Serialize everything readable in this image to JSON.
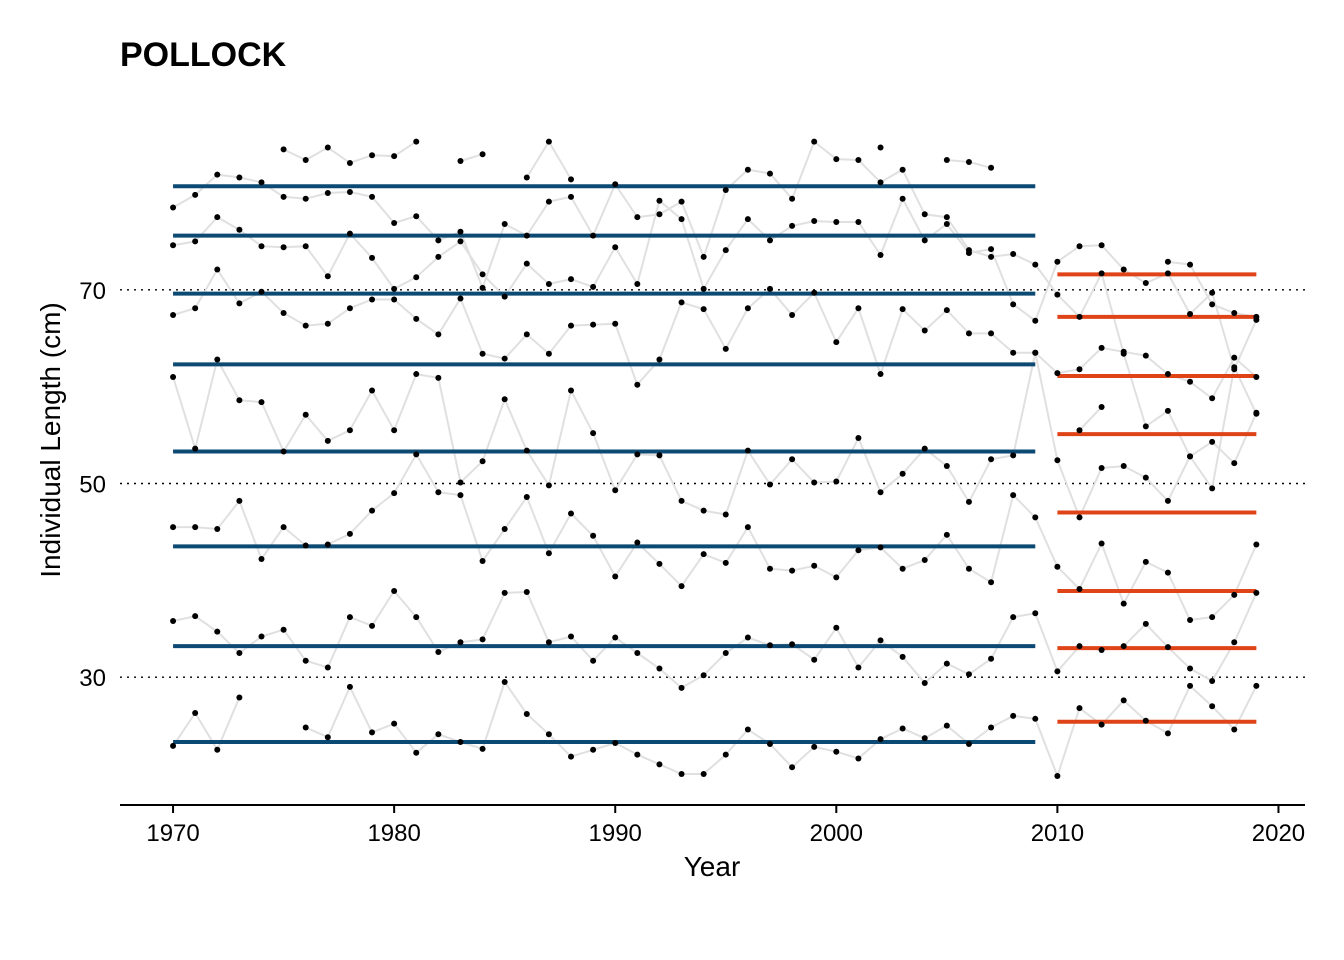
{
  "chart_data": {
    "type": "line",
    "title": "POLLOCK",
    "xlabel": "Year",
    "ylabel": "Individual Length (cm)",
    "xlim": [
      1967.6,
      2021.2
    ],
    "ylim": [
      16.8,
      89.6
    ],
    "x_ticks": [
      1970,
      1980,
      1990,
      2000,
      2010,
      2020
    ],
    "y_ticks": [
      30,
      50,
      70
    ],
    "reference_lines_y": [
      30,
      50,
      70
    ],
    "colors": {
      "series_line": "#e0e0e0",
      "points": "#000000",
      "mean_early": "#0d4a73",
      "mean_late": "#df4419",
      "reference": "#000000"
    },
    "periods": [
      {
        "start": 1970,
        "end": 2009,
        "color": "#0d4a73"
      },
      {
        "start": 2010,
        "end": 2019,
        "color": "#df4419"
      }
    ],
    "years": [
      1970,
      1971,
      1972,
      1973,
      1974,
      1975,
      1976,
      1977,
      1978,
      1979,
      1980,
      1981,
      1982,
      1983,
      1984,
      1985,
      1986,
      1987,
      1988,
      1989,
      1990,
      1991,
      1992,
      1993,
      1994,
      1995,
      1996,
      1997,
      1998,
      1999,
      2000,
      2001,
      2002,
      2003,
      2004,
      2005,
      2006,
      2007,
      2008,
      2009,
      2010,
      2011,
      2012,
      2013,
      2014,
      2015,
      2016,
      2017,
      2018,
      2019
    ],
    "series": [
      {
        "values": [
          22.9,
          26.3,
          22.5,
          27.9,
          null,
          null,
          24.8,
          23.8,
          29.0,
          24.3,
          25.2,
          22.2,
          24.1,
          23.3,
          22.6,
          29.5,
          26.2,
          24.1,
          21.8,
          22.5,
          23.2,
          22.0,
          21.0,
          20.0,
          20.0,
          22.0,
          24.6,
          23.1,
          20.7,
          22.8,
          22.3,
          21.6,
          23.6,
          24.7,
          23.7,
          25.0,
          23.1,
          24.8,
          26.0,
          25.7,
          19.8,
          26.8,
          25.1,
          27.6,
          25.5,
          24.2,
          29.1,
          27.0,
          24.6,
          29.1
        ]
      },
      {
        "values": [
          35.8,
          36.3,
          34.7,
          32.5,
          34.2,
          34.9,
          31.7,
          31.0,
          36.2,
          35.3,
          38.9,
          36.2,
          32.6,
          33.6,
          33.9,
          38.7,
          38.8,
          33.6,
          34.2,
          31.7,
          34.1,
          32.5,
          30.9,
          28.9,
          30.2,
          32.5,
          34.1,
          33.3,
          33.4,
          31.8,
          35.1,
          31.0,
          33.8,
          32.1,
          29.4,
          31.4,
          30.3,
          31.9,
          36.2,
          36.6,
          30.6,
          33.2,
          32.8,
          33.2,
          35.5,
          33.1,
          30.9,
          29.6,
          33.6,
          38.7
        ]
      },
      {
        "values": [
          45.5,
          45.5,
          45.3,
          48.2,
          42.2,
          45.5,
          43.6,
          43.7,
          44.8,
          47.2,
          49.0,
          53.0,
          49.1,
          48.8,
          42.0,
          45.3,
          48.6,
          42.8,
          46.9,
          44.6,
          40.4,
          43.9,
          41.7,
          39.4,
          42.7,
          41.8,
          45.5,
          41.2,
          41.0,
          41.5,
          40.3,
          43.1,
          43.4,
          41.2,
          42.1,
          44.7,
          41.2,
          39.8,
          48.8,
          46.5,
          41.4,
          39.1,
          43.8,
          37.6,
          41.9,
          40.8,
          35.9,
          36.2,
          38.5,
          43.7
        ]
      },
      {
        "values": [
          61.0,
          53.6,
          62.8,
          58.6,
          58.4,
          53.3,
          57.1,
          54.4,
          55.5,
          59.6,
          55.5,
          61.3,
          60.9,
          50.1,
          52.3,
          58.7,
          53.4,
          49.8,
          59.6,
          55.2,
          49.3,
          53.0,
          52.9,
          48.2,
          47.2,
          46.8,
          53.4,
          49.9,
          52.5,
          50.1,
          50.2,
          54.7,
          49.1,
          51.0,
          53.6,
          51.8,
          48.1,
          52.5,
          52.9,
          63.5,
          52.4,
          46.5,
          51.6,
          51.8,
          50.6,
          48.2,
          52.8,
          54.3,
          52.1,
          57.3
        ]
      },
      {
        "values": [
          67.4,
          68.1,
          72.1,
          68.6,
          69.8,
          67.6,
          66.3,
          66.5,
          68.1,
          69.0,
          69.0,
          67.0,
          65.4,
          69.1,
          63.4,
          62.9,
          65.4,
          63.4,
          66.3,
          66.4,
          66.5,
          60.2,
          62.8,
          68.7,
          68.0,
          63.9,
          68.1,
          70.1,
          67.4,
          69.7,
          64.6,
          68.1,
          61.3,
          68.0,
          65.8,
          67.9,
          65.5,
          65.5,
          63.5,
          63.5,
          61.4,
          61.8,
          64.0,
          63.6,
          63.2,
          61.3,
          60.5,
          58.8,
          63.0,
          61.0
        ]
      },
      {
        "values": [
          74.6,
          75.0,
          77.5,
          76.2,
          74.5,
          74.4,
          74.5,
          71.4,
          75.8,
          73.3,
          70.1,
          71.3,
          73.4,
          75.0,
          71.6,
          69.3,
          72.7,
          70.6,
          71.1,
          70.3,
          74.4,
          70.6,
          79.2,
          77.3,
          70.1,
          74.1,
          77.3,
          75.1,
          76.6,
          77.1,
          77.0,
          77.0,
          73.6,
          79.4,
          75.1,
          76.8,
          73.8,
          74.2,
          68.5,
          66.8,
          72.9,
          74.5,
          74.6,
          72.1,
          70.7,
          71.7,
          67.5,
          69.7,
          61.8,
          66.9
        ]
      },
      {
        "values": [
          78.5,
          79.8,
          81.9,
          81.6,
          81.1,
          79.6,
          79.4,
          80.0,
          80.1,
          79.6,
          76.9,
          77.6,
          75.1,
          76.0,
          70.2,
          76.8,
          75.6,
          79.1,
          79.6,
          75.6,
          80.9,
          77.5,
          77.8,
          79.1,
          73.4,
          80.3,
          82.4,
          82.0,
          79.4,
          85.3,
          83.5,
          83.4,
          81.1,
          82.4,
          77.8,
          77.5,
          74.1,
          73.4,
          73.7,
          72.6,
          69.5,
          67.2,
          71.7,
          63.4,
          55.9,
          57.5,
          52.8,
          49.5,
          62.0,
          57.2
        ]
      },
      {
        "values": [
          null,
          null,
          null,
          null,
          null,
          84.5,
          83.4,
          84.7,
          83.1,
          83.9,
          83.8,
          85.3,
          null,
          83.3,
          84.0,
          null,
          81.6,
          85.3,
          81.4,
          null,
          null,
          null,
          null,
          null,
          null,
          null,
          null,
          null,
          null,
          null,
          null,
          null,
          84.7,
          null,
          null,
          83.4,
          83.2,
          82.6,
          null,
          null,
          null,
          55.5,
          57.9,
          null,
          null,
          72.9,
          72.6,
          68.5,
          67.6,
          67.2
        ]
      }
    ],
    "mean_lines": [
      {
        "period": "1970-2009",
        "values": [
          23.3,
          33.2,
          43.5,
          53.3,
          62.3,
          69.6,
          75.6,
          80.7
        ]
      },
      {
        "period": "2010-2019",
        "values": [
          25.4,
          33.0,
          38.9,
          47.0,
          55.1,
          61.1,
          67.2,
          71.6
        ]
      }
    ]
  }
}
